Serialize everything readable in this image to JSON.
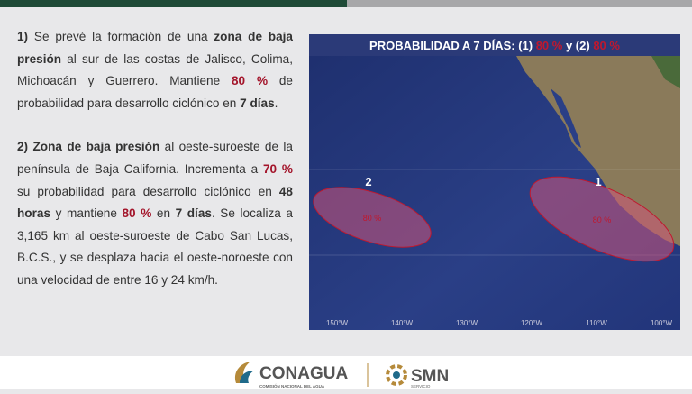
{
  "paragraphs": [
    [
      {
        "text": "1)",
        "weight": "bold"
      },
      {
        "text": " Se prevé la formación de una "
      },
      {
        "text": "zona de baja presión",
        "weight": "bold"
      },
      {
        "text": " al sur de las costas de Jalisco, Colima, Michoacán y Guerrero. Mantiene "
      },
      {
        "text": "80 %",
        "weight": "bold",
        "color": "#a3142a"
      },
      {
        "text": " de probabilidad para desarrollo ciclónico en "
      },
      {
        "text": "7 días",
        "weight": "bold"
      },
      {
        "text": "."
      }
    ],
    [
      {
        "text": "2)",
        "weight": "bold"
      },
      {
        "text": " "
      },
      {
        "text": "Zona de baja presión",
        "weight": "bold"
      },
      {
        "text": " al oeste-suroeste de la península de Baja California. Incrementa a "
      },
      {
        "text": "70 %",
        "weight": "bold",
        "color": "#a3142a"
      },
      {
        "text": " su probabilidad para desarrollo ciclónico en "
      },
      {
        "text": "48 horas",
        "weight": "bold"
      },
      {
        "text": " y mantiene "
      },
      {
        "text": "80 %",
        "weight": "bold",
        "color": "#a3142a"
      },
      {
        "text": " en "
      },
      {
        "text": "7 días",
        "weight": "bold"
      },
      {
        "text": ". Se localiza a 3,165 km al oeste-suroeste de Cabo San Lucas, B.C.S., y se desplaza hacia el oeste-noroeste con una velocidad de entre 16 y 24 km/h."
      }
    ]
  ],
  "map": {
    "title": [
      {
        "text": "PROBABILIDAD A 7 DÍAS: (1) "
      },
      {
        "text": "80 %",
        "color": "#c0182e"
      },
      {
        "text": " y  (2) "
      },
      {
        "text": "80 %",
        "color": "#c0182e"
      }
    ],
    "areas": [
      {
        "number": "2",
        "label": "80 %"
      },
      {
        "number": "1",
        "label": "80 %"
      }
    ],
    "longitudes": [
      "150°W",
      "140°W",
      "130°W",
      "120°W",
      "110°W",
      "100°W"
    ]
  },
  "footer": {
    "conagua": "CONAGUA",
    "conagua_sub": "COMISIÓN NACIONAL DEL AGUA",
    "smn": "SMN",
    "smn_sub": "SERVICIO"
  }
}
